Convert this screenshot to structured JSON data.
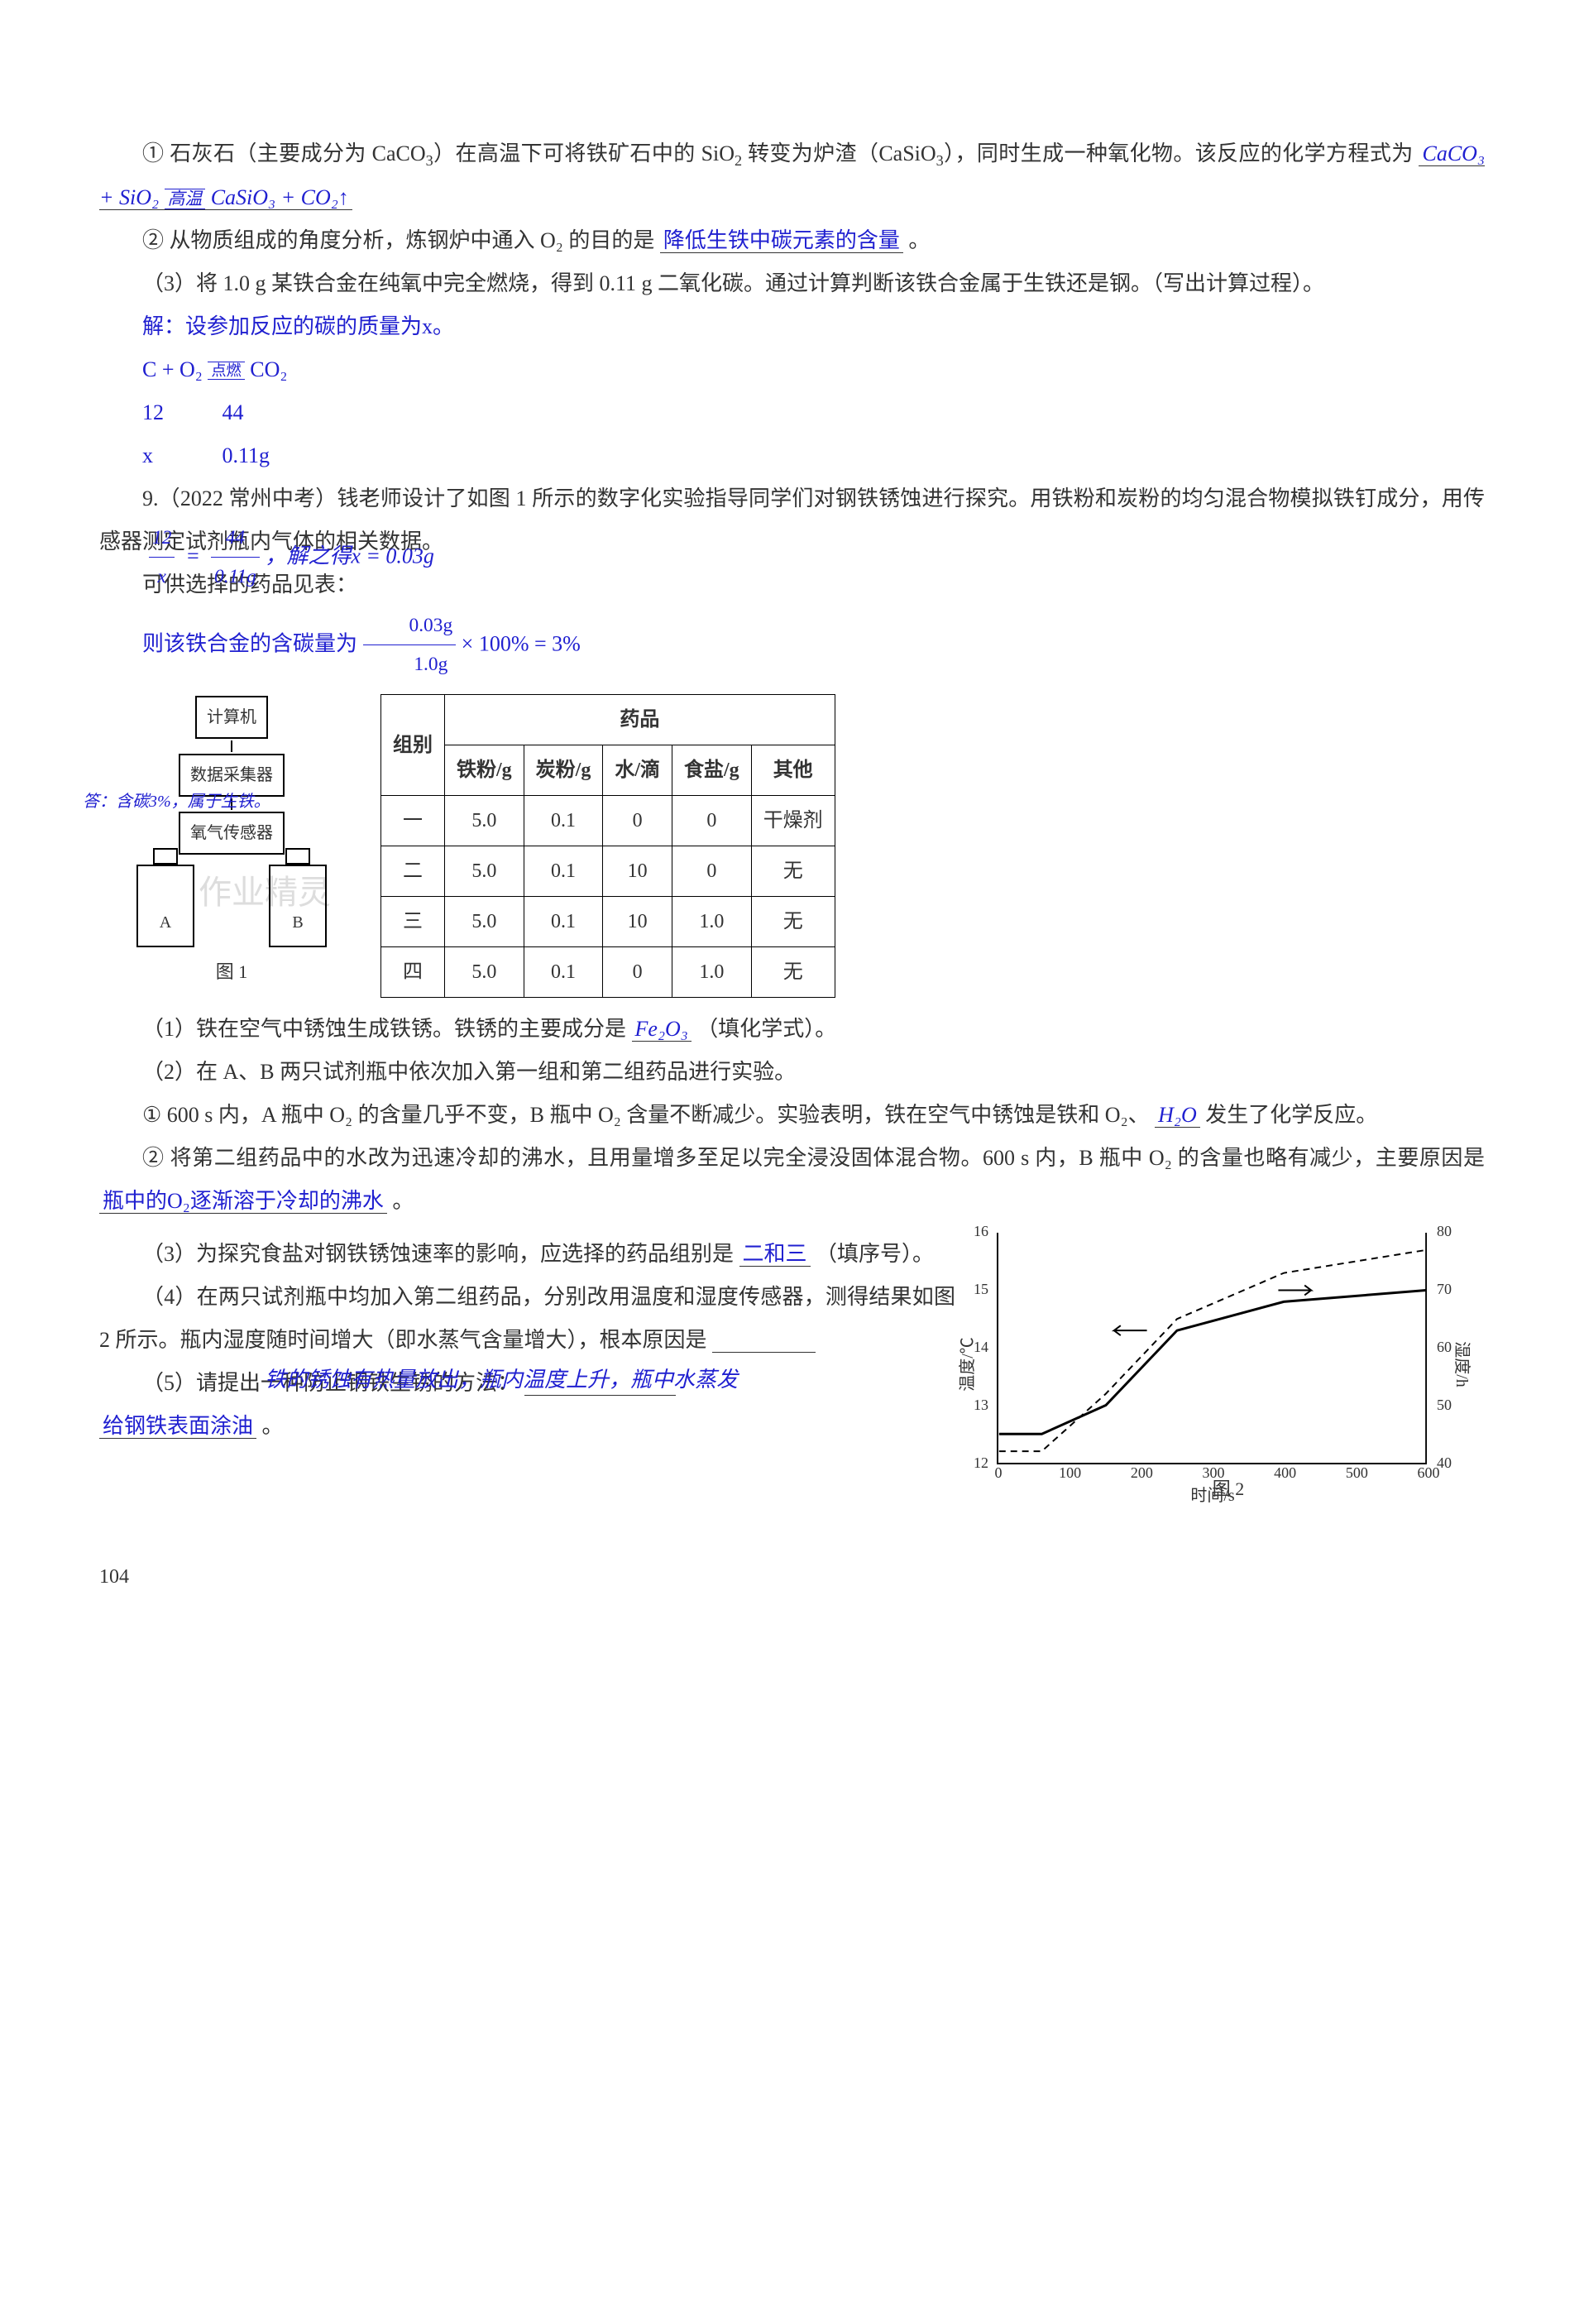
{
  "para1": {
    "t1": "① 石灰石（主要成分为 CaCO",
    "t1b": "）在高温下可将铁矿石中的 SiO",
    "t1c": " 转变为炉渣（CaSiO",
    "t1d": "），同时生成一种氧化物。该反应的化学方程式为",
    "eq_l": "CaCO₃ + SiO₂",
    "eq_cond": "高温",
    "eq_r": "CaSiO₃ + CO₂↑"
  },
  "para2": {
    "t": "② 从物质组成的角度分析，炼钢炉中通入 O₂ 的目的是",
    "ans": "降低生铁中碳元素的含量",
    "tail": "。"
  },
  "para3": {
    "t": "（3）将 1.0 g 某铁合金在纯氧中完全燃烧，得到 0.11 g 二氧化碳。通过计算判断该铁合金属于生铁还是钢。（写出计算过程）。"
  },
  "calc": {
    "l1": "解：设参加反应的碳的质量为x。",
    "l2a": "C + O₂",
    "l2cond": "点燃",
    "l2b": "CO₂",
    "l3a": "12",
    "l3b": "44",
    "l4a": "x",
    "l4b": "0.11g"
  },
  "q9": {
    "head": "9.（2022 常州中考）钱老师设计了如图 1 所示的数字化实验指导同学们对钢铁锈蚀进行探究。用铁粉和炭粉的均匀混合物模拟铁钉成分，用传感器测定试剂瓶内气体的相关数据。",
    "overlay1_a": "12",
    "overlay1_b": "44",
    "overlay2_a": "x",
    "overlay2_b": "0.11g",
    "overlay2_eq": "，解之得x = 0.03g",
    "supplies": "可供选择的药品见表：",
    "pct_line_a": "则该铁合金的含碳量为",
    "pct_num": "0.03g",
    "pct_den": "1.0g",
    "pct_line_b": " × 100% = 3%",
    "ans_line": "答：含碳3%，属于生铁。"
  },
  "diagram": {
    "box1": "计算机",
    "box2": "数据采集器",
    "box3": "氧气传感器",
    "A": "A",
    "B": "B",
    "cap": "图 1"
  },
  "table": {
    "h_group": "组别",
    "h_med": "药品",
    "cols": [
      "铁粉/g",
      "炭粉/g",
      "水/滴",
      "食盐/g",
      "其他"
    ],
    "rows": [
      [
        "一",
        "5.0",
        "0.1",
        "0",
        "0",
        "干燥剂"
      ],
      [
        "二",
        "5.0",
        "0.1",
        "10",
        "0",
        "无"
      ],
      [
        "三",
        "5.0",
        "0.1",
        "10",
        "1.0",
        "无"
      ],
      [
        "四",
        "5.0",
        "0.1",
        "0",
        "1.0",
        "无"
      ]
    ]
  },
  "q9_1": {
    "t": "（1）铁在空气中锈蚀生成铁锈。铁锈的主要成分是",
    "ans": "Fe₂O₃",
    "tail": "（填化学式）。"
  },
  "q9_2": {
    "t": "（2）在 A、B 两只试剂瓶中依次加入第一组和第二组药品进行实验。"
  },
  "q9_2_1": {
    "a": "① 600 s 内，A 瓶中 O₂ 的含量几乎不变，B 瓶中 O₂ 含量不断减少。实验表明，铁在空气中锈蚀是铁和 O₂、",
    "ans": "H₂O",
    "b": " 发生了化学反应。"
  },
  "q9_2_2": {
    "a": "② 将第二组药品中的水改为迅速冷却的沸水，且用量增多至足以完全浸没固体混合物。600 s 内，B 瓶中 O₂ 的含量也略有减少，主要原因是",
    "ans": "瓶中的O₂逐渐溶于冷却的沸水",
    "tail": "。"
  },
  "q9_3": {
    "a": "（3）为探究食盐对钢铁锈蚀速率的影响，应选择的药品组别是",
    "ans": "二和三",
    "b": "（填序号）。"
  },
  "q9_4": {
    "a": "（4）在两只试剂瓶中均加入第二组药品，分别改用温度和湿度传感器，测得结果如图 2 所示。瓶内湿度随时间增大（即水蒸气含量增大），根本原因是",
    "ans": "铁的锈蚀有热量放出，瓶内温度上升，瓶中水蒸发"
  },
  "q9_5": {
    "a": "（5）请提出一种防止钢铁生锈的方法：",
    "ans": "给钢铁表面涂油",
    "tail": "。"
  },
  "chart": {
    "ylab_l": "温度/℃",
    "ylab_r": "湿度/h",
    "xlab": "时间/s",
    "yl_ticks": [
      12,
      13,
      14,
      15,
      16
    ],
    "yr_ticks": [
      40,
      50,
      60,
      70,
      80
    ],
    "x_ticks": [
      0,
      100,
      200,
      300,
      400,
      500,
      600
    ],
    "solid": [
      [
        0,
        12.5
      ],
      [
        60,
        12.5
      ],
      [
        150,
        13.0
      ],
      [
        250,
        14.3
      ],
      [
        400,
        14.8
      ],
      [
        600,
        15.0
      ]
    ],
    "dashed": [
      [
        0,
        42
      ],
      [
        60,
        42
      ],
      [
        150,
        52
      ],
      [
        250,
        65
      ],
      [
        400,
        73
      ],
      [
        600,
        77
      ]
    ],
    "cap": "图 2"
  },
  "page": "104"
}
